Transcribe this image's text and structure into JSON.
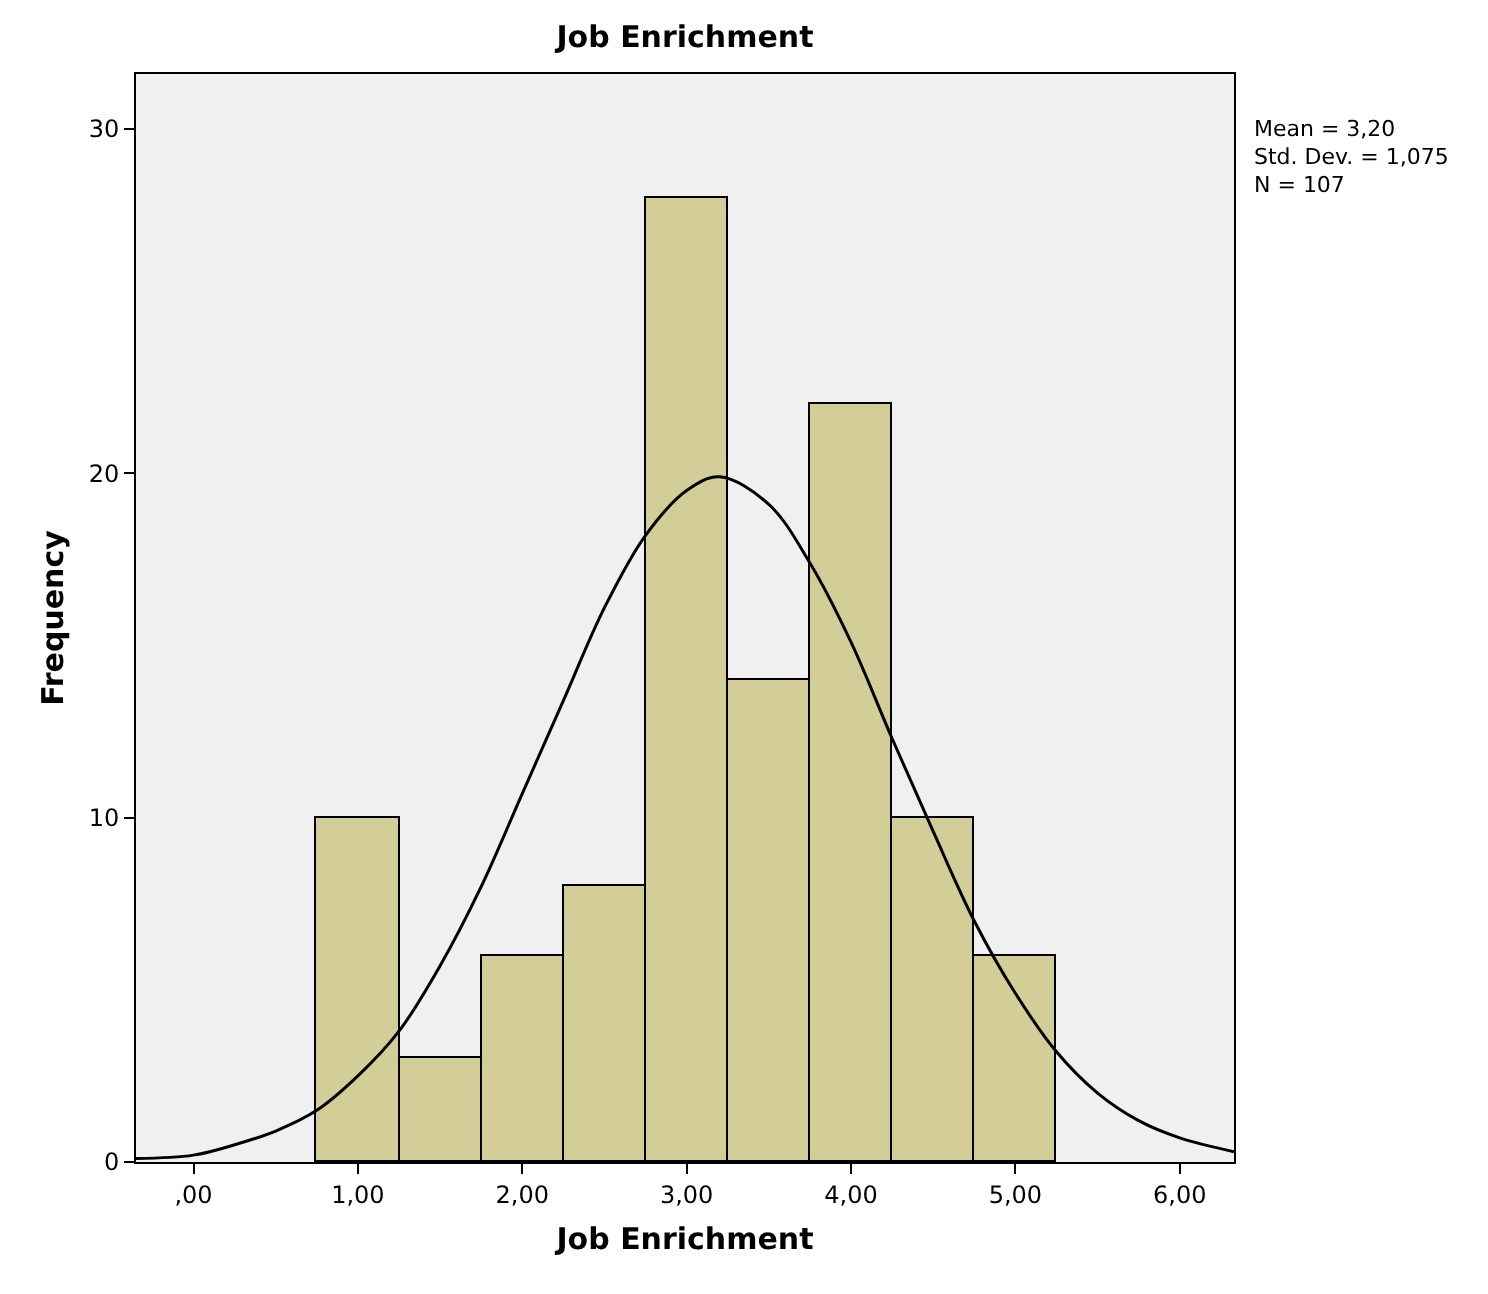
{
  "chart_data": {
    "type": "histogram",
    "title": "Job Enrichment",
    "xlabel": "Job Enrichment",
    "ylabel": "Frequency",
    "bins": [
      0.75,
      1.25,
      1.75,
      2.25,
      2.75,
      3.25,
      3.75,
      4.25,
      4.75,
      5.25
    ],
    "values": [
      10,
      3,
      6,
      8,
      28,
      14,
      22,
      10,
      6
    ],
    "color": "#d3ce97",
    "series": [
      {
        "type": "line",
        "color": "#000000",
        "x": [
          -0.35,
          0,
          0.25,
          0.5,
          0.75,
          1.0,
          1.25,
          1.5,
          1.75,
          2.0,
          2.25,
          2.5,
          2.75,
          3.0,
          3.2,
          3.5,
          3.75,
          4.0,
          4.25,
          4.5,
          4.75,
          5.0,
          5.25,
          5.5,
          5.75,
          6.0,
          6.33
        ],
        "values": [
          0.1,
          0.2,
          0.5,
          0.9,
          1.5,
          2.5,
          3.8,
          5.7,
          8.0,
          10.7,
          13.4,
          16.1,
          18.2,
          19.5,
          19.9,
          19.1,
          17.4,
          15.1,
          12.3,
          9.6,
          7.0,
          4.9,
          3.2,
          2.0,
          1.2,
          0.7,
          0.3
        ]
      }
    ],
    "xlim": [
      -0.35,
      6.33
    ],
    "ylim": [
      0,
      31.6
    ],
    "xticks": [
      {
        "value": 0,
        "label": ",00"
      },
      {
        "value": 1,
        "label": "1,00"
      },
      {
        "value": 2,
        "label": "2,00"
      },
      {
        "value": 3,
        "label": "3,00"
      },
      {
        "value": 4,
        "label": "4,00"
      },
      {
        "value": 5,
        "label": "5,00"
      },
      {
        "value": 6,
        "label": "6,00"
      }
    ],
    "yticks": [
      0,
      10,
      20,
      30
    ],
    "annotations": [
      "Mean = 3,20",
      "Std. Dev. = 1,075",
      "N = 107"
    ]
  }
}
